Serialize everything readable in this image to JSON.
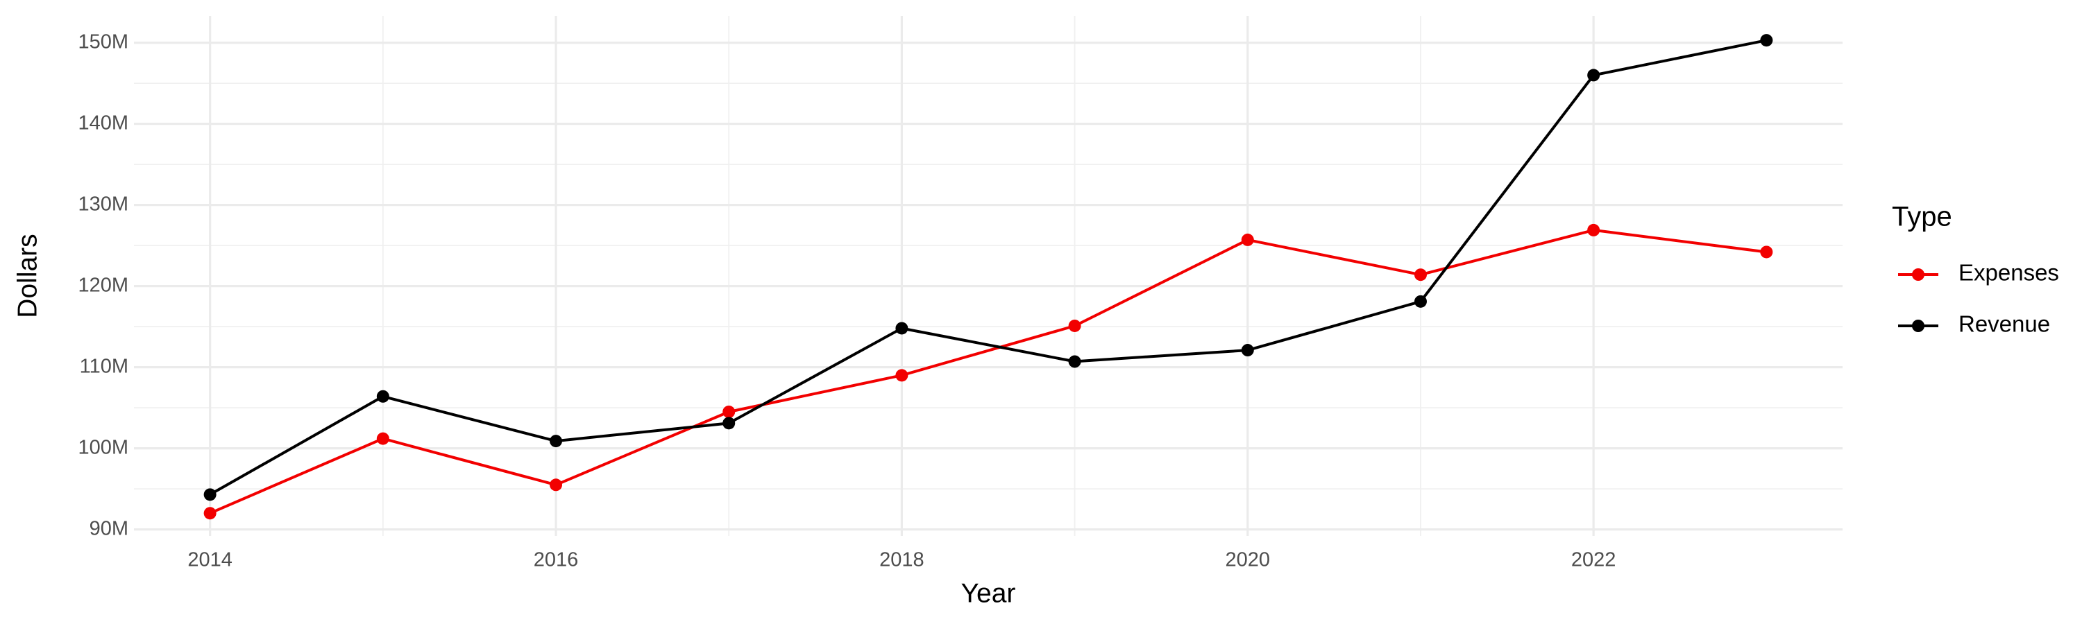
{
  "chart_data": {
    "type": "line",
    "x_label": "Year",
    "y_label": "Dollars",
    "legend_title": "Type",
    "legend_position": "right",
    "grid": true,
    "x": [
      2014,
      2015,
      2016,
      2017,
      2018,
      2019,
      2020,
      2021,
      2022,
      2023
    ],
    "xlim": [
      2013.56,
      2023.44
    ],
    "xticks": [
      2014,
      2016,
      2018,
      2020,
      2022
    ],
    "ylim": [
      89200000,
      153300000
    ],
    "yticks": [
      {
        "value": 90000000,
        "label": "90M"
      },
      {
        "value": 100000000,
        "label": "100M"
      },
      {
        "value": 110000000,
        "label": "110M"
      },
      {
        "value": 120000000,
        "label": "120M"
      },
      {
        "value": 130000000,
        "label": "130M"
      },
      {
        "value": 140000000,
        "label": "140M"
      },
      {
        "value": 150000000,
        "label": "150M"
      }
    ],
    "series": [
      {
        "name": "Expenses",
        "color": "#f20000",
        "values": [
          92000000,
          101200000,
          95500000,
          104500000,
          109000000,
          115100000,
          125700000,
          121400000,
          126900000,
          124200000
        ]
      },
      {
        "name": "Revenue",
        "color": "#000000",
        "values": [
          94300000,
          106400000,
          100900000,
          103100000,
          114800000,
          110700000,
          112100000,
          118100000,
          146000000,
          150300000
        ]
      }
    ]
  }
}
